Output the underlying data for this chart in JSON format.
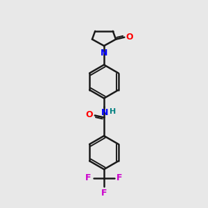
{
  "background_color": "#e8e8e8",
  "bond_color": "#1a1a1a",
  "N_color": "#0000ff",
  "O_color": "#ff0000",
  "F_color": "#cc00cc",
  "NH_color": "#008080",
  "figsize": [
    3.0,
    3.0
  ],
  "dpi": 100,
  "xlim": [
    0,
    10
  ],
  "ylim": [
    0,
    10
  ]
}
